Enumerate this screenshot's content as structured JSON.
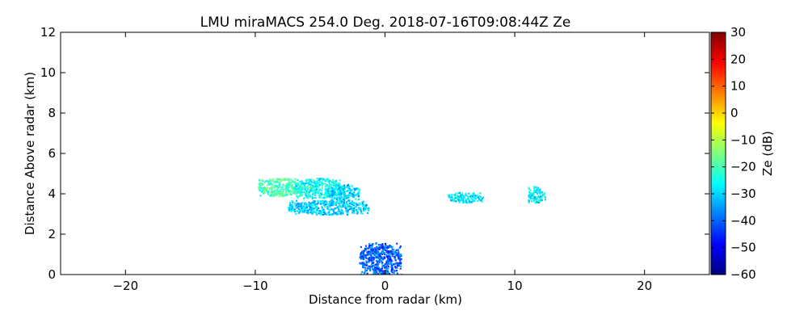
{
  "chart_data": {
    "type": "heatmap",
    "title": "LMU miraMACS 254.0 Deg. 2018-07-16T09:08:44Z  Ze",
    "xlabel": "Distance from radar (km)",
    "ylabel": "Distance Above radar  (km)",
    "xlim": [
      -25,
      25
    ],
    "ylim": [
      0,
      12
    ],
    "xticks": [
      -20,
      -10,
      0,
      10,
      20
    ],
    "yticks": [
      0,
      2,
      4,
      6,
      8,
      10,
      12
    ],
    "grid": false,
    "colorbar": {
      "label": "Ze (dB)",
      "range": [
        -60,
        30
      ],
      "ticks": [
        -60,
        -50,
        -40,
        -30,
        -20,
        -10,
        0,
        10,
        20,
        30
      ],
      "colormap": "jet",
      "colors": [
        "#00007f",
        "#0000ff",
        "#007fff",
        "#00ffff",
        "#7fff7f",
        "#ffff00",
        "#ff7f00",
        "#ff0000",
        "#7f0000"
      ]
    },
    "echo_regions": [
      {
        "x": [
          -9.8,
          -6.5
        ],
        "y": [
          3.9,
          4.8
        ],
        "ze": -20
      },
      {
        "x": [
          -7.0,
          -3.5
        ],
        "y": [
          3.8,
          4.8
        ],
        "ze": -25
      },
      {
        "x": [
          -4.5,
          -2.0
        ],
        "y": [
          3.7,
          4.5
        ],
        "ze": -30
      },
      {
        "x": [
          -7.5,
          -1.3
        ],
        "y": [
          3.0,
          3.7
        ],
        "ze": -30
      },
      {
        "x": [
          4.8,
          7.5
        ],
        "y": [
          3.6,
          4.1
        ],
        "ze": -28
      },
      {
        "x": [
          11.0,
          12.3
        ],
        "y": [
          3.6,
          4.4
        ],
        "ze": -27
      },
      {
        "x": [
          -2.0,
          1.2
        ],
        "y": [
          0.0,
          1.6
        ],
        "ze": -40
      }
    ]
  }
}
